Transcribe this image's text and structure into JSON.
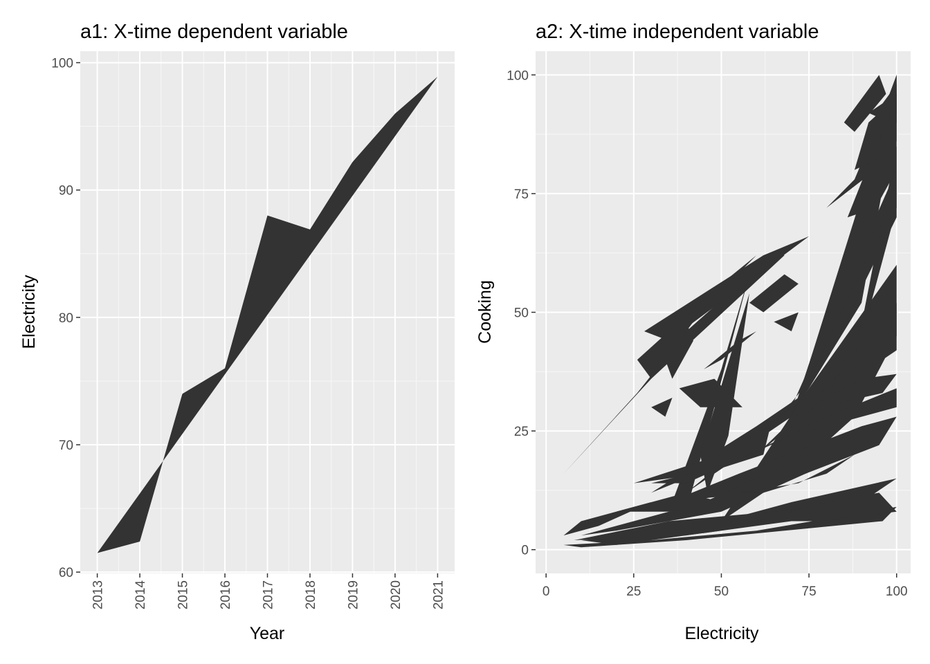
{
  "charts": [
    {
      "type": "area",
      "title": "a1: X-time dependent variable",
      "xlabel": "Year",
      "ylabel": "Electricity",
      "x_ticks": [
        "2013",
        "2014",
        "2015",
        "2016",
        "2017",
        "2018",
        "2019",
        "2020",
        "2021"
      ],
      "y_ticks": [
        "60",
        "70",
        "80",
        "90",
        "100"
      ],
      "xlim": [
        2012.6,
        2021.4
      ],
      "ylim": [
        59.9,
        100.9
      ],
      "grid": true,
      "chart_data": {
        "type": "area",
        "note_fill": "polygon between observed series and straight trend",
        "x": [
          2013,
          2014,
          2015,
          2016,
          2017,
          2018,
          2019,
          2020,
          2021
        ],
        "observed": [
          61.5,
          62.4,
          74.0,
          76.0,
          88.0,
          86.9,
          92.2,
          96.0,
          98.9
        ],
        "trend_start": [
          2013,
          61.5
        ],
        "trend_end": [
          2021,
          98.9
        ],
        "fill_color": "#333333"
      }
    },
    {
      "type": "polygon",
      "title": "a2: X-time independent variable",
      "xlabel": "Electricity",
      "ylabel": "Cooking",
      "x_ticks": [
        "0",
        "25",
        "50",
        "75",
        "100"
      ],
      "y_ticks": [
        "0",
        "25",
        "50",
        "75",
        "100"
      ],
      "xlim": [
        -3,
        104
      ],
      "ylim": [
        -5,
        105
      ],
      "grid": true,
      "chart_data": {
        "type": "polygon",
        "fill_color": "#333333",
        "polygons": [
          [
            [
              5,
              16
            ],
            [
              30,
              36
            ],
            [
              68,
              62
            ],
            [
              66,
              63
            ],
            [
              40,
              46
            ],
            [
              26,
              33
            ]
          ],
          [
            [
              28,
              46
            ],
            [
              62,
              62
            ],
            [
              75,
              66
            ],
            [
              35,
              44
            ]
          ],
          [
            [
              26,
              40
            ],
            [
              50,
              56
            ],
            [
              60,
              62
            ],
            [
              44,
              50
            ],
            [
              30,
              36
            ]
          ],
          [
            [
              36,
              10
            ],
            [
              50,
              38
            ],
            [
              58,
              58
            ],
            [
              48,
              30
            ],
            [
              40,
              8
            ]
          ],
          [
            [
              44,
              20
            ],
            [
              58,
              54
            ],
            [
              52,
              24
            ],
            [
              46,
              12
            ]
          ],
          [
            [
              30,
              12
            ],
            [
              60,
              26
            ],
            [
              72,
              32
            ],
            [
              100,
              98
            ],
            [
              100,
              90
            ],
            [
              96,
              76
            ],
            [
              90,
              52
            ],
            [
              70,
              28
            ],
            [
              50,
              18
            ]
          ],
          [
            [
              40,
              12
            ],
            [
              70,
              30
            ],
            [
              100,
              80
            ],
            [
              100,
              70
            ],
            [
              80,
              40
            ],
            [
              60,
              22
            ]
          ],
          [
            [
              50,
              6
            ],
            [
              75,
              34
            ],
            [
              100,
              60
            ],
            [
              100,
              45
            ],
            [
              88,
              28
            ],
            [
              70,
              16
            ]
          ],
          [
            [
              60,
              20
            ],
            [
              88,
              40
            ],
            [
              100,
              85
            ],
            [
              100,
              72
            ],
            [
              92,
              50
            ],
            [
              80,
              32
            ]
          ],
          [
            [
              70,
              28
            ],
            [
              96,
              86
            ],
            [
              100,
              100
            ],
            [
              100,
              92
            ],
            [
              92,
              62
            ]
          ],
          [
            [
              80,
              72
            ],
            [
              94,
              80
            ],
            [
              100,
              100
            ],
            [
              96,
              92
            ],
            [
              88,
              78
            ]
          ],
          [
            [
              90,
              84
            ],
            [
              98,
              96
            ],
            [
              100,
              100
            ],
            [
              100,
              86
            ],
            [
              94,
              80
            ]
          ],
          [
            [
              86,
              70
            ],
            [
              100,
              96
            ],
            [
              100,
              80
            ],
            [
              94,
              72
            ]
          ],
          [
            [
              85,
              90
            ],
            [
              95,
              100
            ],
            [
              97,
              96
            ],
            [
              88,
              88
            ]
          ],
          [
            [
              88,
              80
            ],
            [
              92,
              90
            ],
            [
              98,
              94
            ],
            [
              94,
              82
            ]
          ],
          [
            [
              92,
              92
            ],
            [
              96,
              94
            ],
            [
              100,
              98
            ],
            [
              98,
              90
            ]
          ],
          [
            [
              25,
              14
            ],
            [
              50,
              20
            ],
            [
              64,
              26
            ],
            [
              62,
              20
            ],
            [
              45,
              16
            ]
          ],
          [
            [
              30,
              14
            ],
            [
              52,
              18
            ],
            [
              80,
              28
            ],
            [
              100,
              34
            ],
            [
              100,
              30
            ],
            [
              70,
              24
            ],
            [
              40,
              14
            ]
          ],
          [
            [
              35,
              10
            ],
            [
              55,
              16
            ],
            [
              90,
              26
            ],
            [
              100,
              28
            ],
            [
              95,
              22
            ],
            [
              60,
              12
            ]
          ],
          [
            [
              10,
              2
            ],
            [
              40,
              4
            ],
            [
              70,
              10
            ],
            [
              100,
              15
            ],
            [
              90,
              10
            ],
            [
              50,
              4
            ],
            [
              20,
              1
            ]
          ],
          [
            [
              5,
              1
            ],
            [
              30,
              2
            ],
            [
              60,
              4
            ],
            [
              100,
              9
            ],
            [
              96,
              6
            ],
            [
              40,
              2
            ],
            [
              10,
              0.5
            ]
          ],
          [
            [
              8,
              2
            ],
            [
              35,
              6
            ],
            [
              65,
              8
            ],
            [
              90,
              10
            ],
            [
              70,
              6
            ],
            [
              40,
              3
            ]
          ],
          [
            [
              10,
              3
            ],
            [
              45,
              10
            ],
            [
              75,
              20
            ],
            [
              80,
              18
            ],
            [
              50,
              8
            ],
            [
              20,
              4
            ]
          ],
          [
            [
              5,
              3
            ],
            [
              10,
              6
            ],
            [
              20,
              8
            ],
            [
              30,
              10
            ],
            [
              15,
              5
            ]
          ],
          [
            [
              20,
              8
            ],
            [
              40,
              12
            ],
            [
              50,
              10
            ],
            [
              35,
              8
            ]
          ],
          [
            [
              38,
              34
            ],
            [
              48,
              36
            ],
            [
              56,
              30
            ],
            [
              44,
              30
            ]
          ],
          [
            [
              36,
              36
            ],
            [
              42,
              44
            ],
            [
              40,
              48
            ],
            [
              34,
              40
            ]
          ],
          [
            [
              58,
              52
            ],
            [
              68,
              58
            ],
            [
              72,
              56
            ],
            [
              62,
              50
            ]
          ],
          [
            [
              65,
              48
            ],
            [
              72,
              50
            ],
            [
              70,
              46
            ]
          ],
          [
            [
              75,
              30
            ],
            [
              90,
              36
            ],
            [
              100,
              37
            ],
            [
              96,
              33
            ],
            [
              84,
              31
            ]
          ],
          [
            [
              60,
              6
            ],
            [
              80,
              10
            ],
            [
              95,
              12
            ],
            [
              100,
              8
            ],
            [
              78,
              6
            ]
          ],
          [
            [
              55,
              12
            ],
            [
              72,
              14
            ],
            [
              88,
              20
            ],
            [
              80,
              16
            ],
            [
              62,
              12
            ]
          ],
          [
            [
              45,
              38
            ],
            [
              55,
              44
            ],
            [
              60,
              46
            ],
            [
              50,
              40
            ]
          ],
          [
            [
              30,
              30
            ],
            [
              36,
              32
            ],
            [
              34,
              28
            ]
          ],
          [
            [
              96,
              40
            ],
            [
              100,
              52
            ],
            [
              100,
              42
            ]
          ]
        ]
      }
    }
  ]
}
